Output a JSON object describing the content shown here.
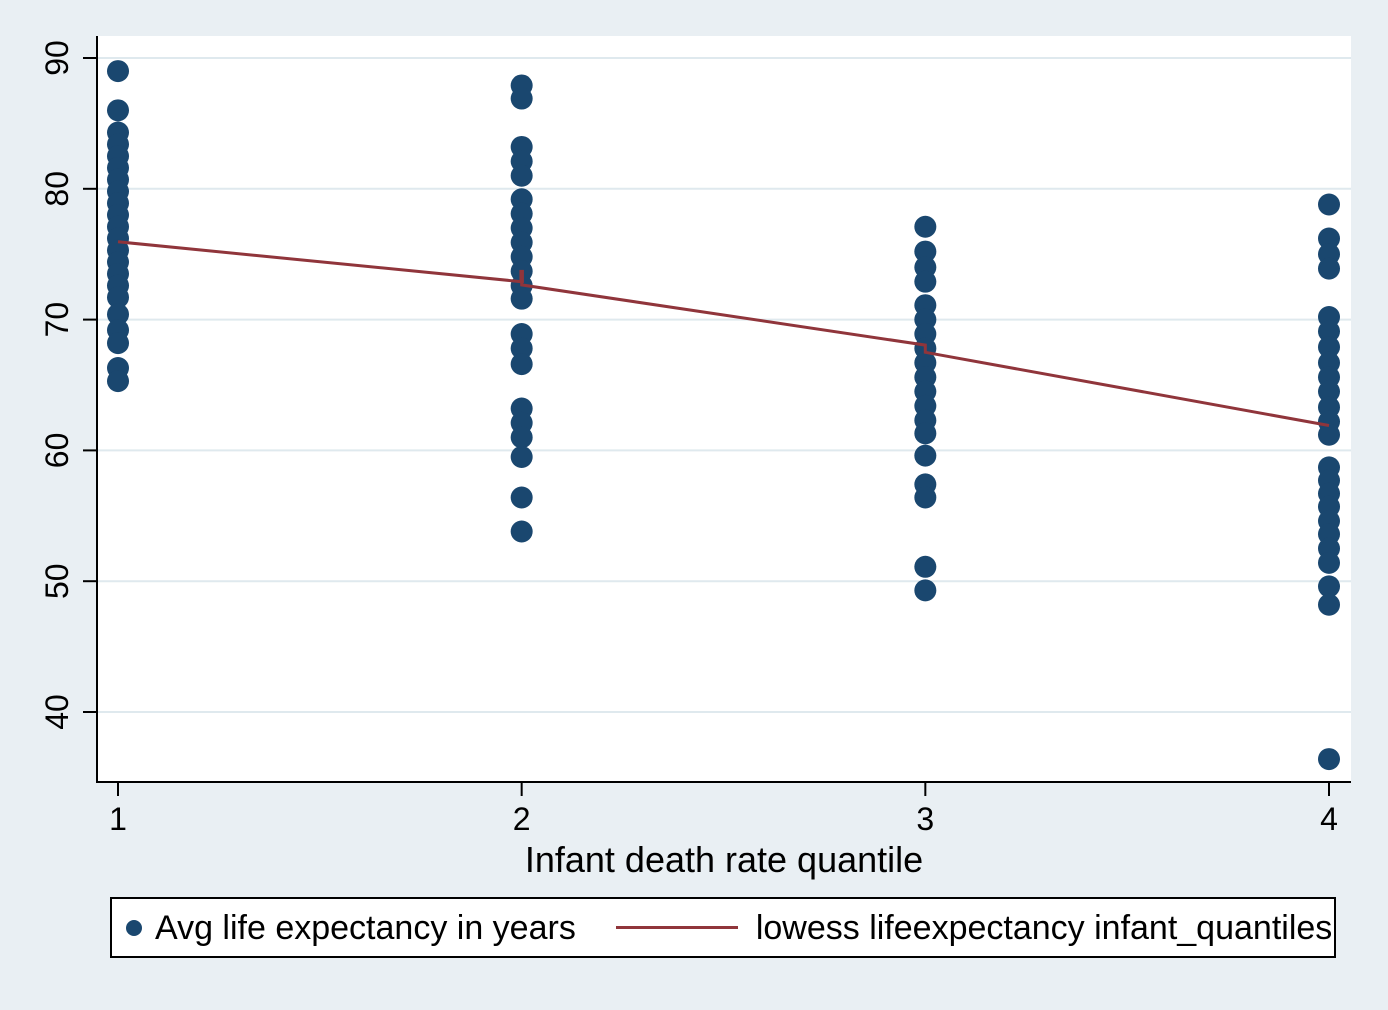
{
  "page": {
    "background": "#e9eff3"
  },
  "chart_data": {
    "type": "scatter",
    "title": "",
    "xlabel": "Infant death rate quantile",
    "ylabel": "",
    "x_ticks": [
      1,
      2,
      3,
      4
    ],
    "y_ticks": [
      40,
      50,
      60,
      70,
      80,
      90
    ],
    "xlim": [
      0.95,
      4.06
    ],
    "ylim": [
      34.6,
      91.8
    ],
    "grid": true,
    "legend_position": "bottom",
    "colors": {
      "marker": "#1a476f",
      "lowess": "#90353b",
      "grid": "#dfe9ee",
      "axis": "#000000",
      "plot_background": "#ffffff",
      "page_background": "#e9eff3"
    },
    "series": [
      {
        "name": "Avg life expectancy in years",
        "type": "scatter",
        "columns": [
          {
            "x": 1,
            "values": [
              89.0,
              86.0,
              84.3,
              83.4,
              82.5,
              81.6,
              80.7,
              79.8,
              78.9,
              78.0,
              77.1,
              76.2,
              75.3,
              74.4,
              73.5,
              72.6,
              71.7,
              70.4,
              69.2,
              68.2,
              66.3,
              65.3
            ]
          },
          {
            "x": 2,
            "values": [
              87.9,
              86.9,
              83.2,
              82.1,
              81.0,
              79.2,
              78.1,
              77.0,
              75.9,
              74.8,
              73.7,
              72.6,
              71.6,
              68.9,
              67.8,
              66.6,
              63.2,
              62.1,
              61.0,
              59.5,
              56.4,
              53.8
            ]
          },
          {
            "x": 3,
            "values": [
              77.1,
              75.2,
              74.0,
              72.9,
              71.1,
              70.0,
              68.9,
              67.8,
              66.7,
              65.6,
              64.5,
              63.4,
              62.3,
              61.3,
              59.6,
              57.4,
              56.4,
              51.1,
              49.3
            ]
          },
          {
            "x": 4,
            "values": [
              78.8,
              76.2,
              75.0,
              73.9,
              70.2,
              69.1,
              67.9,
              66.7,
              65.6,
              64.5,
              63.3,
              62.2,
              61.2,
              58.7,
              57.7,
              56.7,
              55.7,
              54.6,
              53.6,
              52.5,
              51.4,
              49.6,
              48.2,
              36.4
            ]
          }
        ]
      },
      {
        "name": "lowess lifeexpectancy infant_quantiles",
        "type": "line",
        "points": [
          [
            1,
            75.95
          ],
          [
            2,
            72.9
          ],
          [
            2,
            72.65
          ],
          [
            3,
            68.05
          ],
          [
            3,
            67.5
          ],
          [
            4,
            61.9
          ]
        ],
        "tie_tick": {
          "x": 2,
          "from": 73.8,
          "to": 72.8
        }
      }
    ],
    "legend": {
      "items": [
        "Avg life expectancy in years",
        "lowess lifeexpectancy infant_quantiles"
      ]
    }
  }
}
